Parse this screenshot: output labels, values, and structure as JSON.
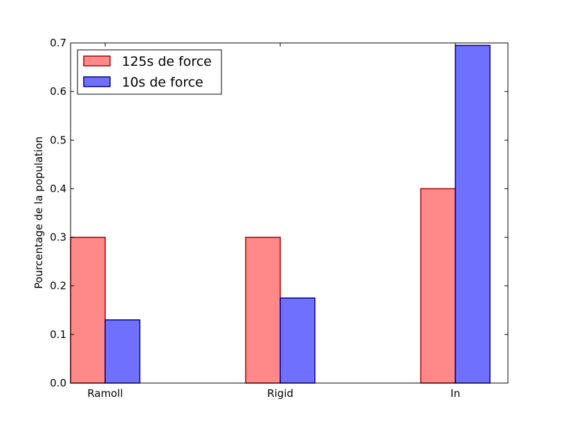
{
  "chart_data": {
    "type": "bar",
    "categories": [
      "Ramoll",
      "Rigid",
      "In"
    ],
    "series": [
      {
        "name": "125s de force",
        "values": [
          0.3,
          0.3,
          0.4
        ],
        "color": "#ff8888",
        "edge": "#aa0000"
      },
      {
        "name": "10s de force",
        "values": [
          0.13,
          0.175,
          0.695
        ],
        "color": "#7070ff",
        "edge": "#000080"
      }
    ],
    "title": "",
    "xlabel": "",
    "ylabel": "Pourcentage de la population",
    "ylim": [
      0,
      0.7
    ],
    "yticks": [
      "0.0",
      "0.1",
      "0.2",
      "0.3",
      "0.4",
      "0.5",
      "0.6",
      "0.7"
    ],
    "legend": "top-left",
    "grid": false
  }
}
